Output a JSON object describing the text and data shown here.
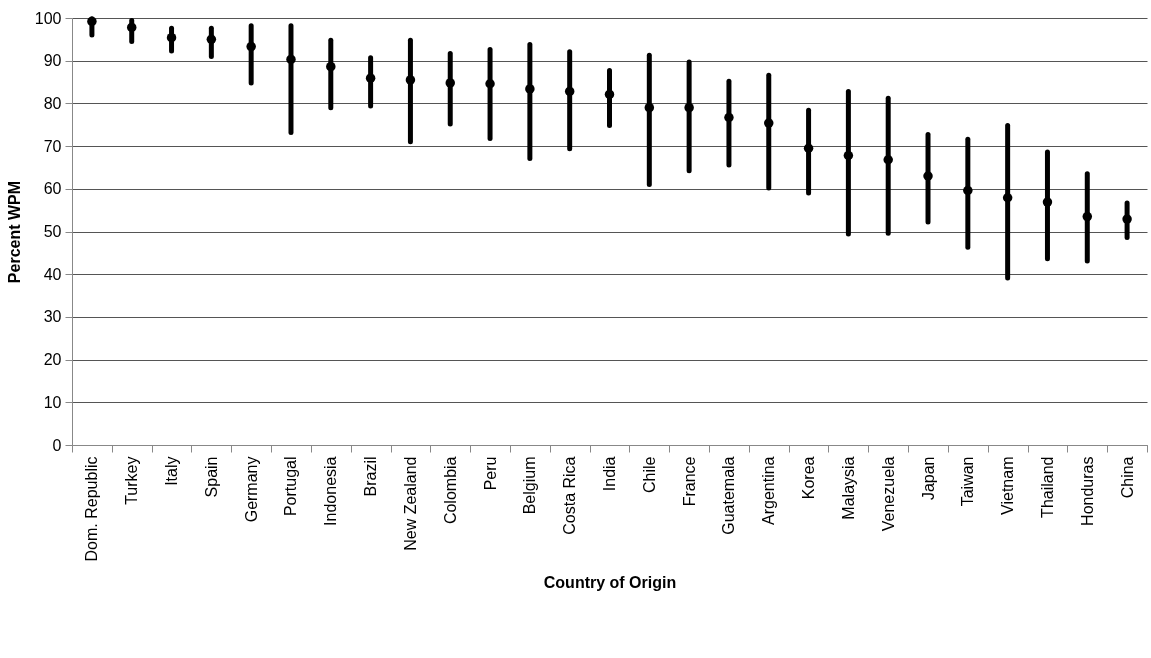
{
  "chart_data": {
    "type": "scatter",
    "xlabel": "Country of Origin",
    "ylabel": "Percent WPM",
    "categories": [
      "Dom. Republic",
      "Turkey",
      "Italy",
      "Spain",
      "Germany",
      "Portugal",
      "Indonesia",
      "Brazil",
      "New Zealand",
      "Colombia",
      "Peru",
      "Belgium",
      "Costa Rica",
      "India",
      "Chile",
      "France",
      "Guatemala",
      "Argentina",
      "Korea",
      "Malaysia",
      "Venezuela",
      "Japan",
      "Taiwan",
      "Vietnam",
      "Thailand",
      "Honduras",
      "China"
    ],
    "series": [
      {
        "color": "#000000",
        "values": [
          99.2,
          97.8,
          95.4,
          95,
          93.3,
          90.3,
          88.6,
          85.9,
          85.5,
          84.8,
          84.6,
          83.4,
          82.8,
          82.1,
          79,
          79,
          76.7,
          75.4,
          69.5,
          67.8,
          66.8,
          63,
          59.6,
          57.9,
          56.9,
          53.5,
          52.9
        ],
        "errors": [
          [
            96,
            99.8
          ],
          [
            94.5,
            99.4
          ],
          [
            92.3,
            97.6
          ],
          [
            91,
            97.6
          ],
          [
            84.8,
            98.2
          ],
          [
            73.2,
            98.2
          ],
          [
            79,
            94.8
          ],
          [
            79.4,
            90.7
          ],
          [
            71,
            94.8
          ],
          [
            75.2,
            91.7
          ],
          [
            71.8,
            92.6
          ],
          [
            67.1,
            93.8
          ],
          [
            69.4,
            92.1
          ],
          [
            74.8,
            87.7
          ],
          [
            61,
            91.3
          ],
          [
            64.2,
            89.7
          ],
          [
            65.6,
            85.2
          ],
          [
            60.2,
            86.6
          ],
          [
            59,
            78.4
          ],
          [
            49.4,
            82.8
          ],
          [
            49.6,
            81.2
          ],
          [
            52.2,
            72.7
          ],
          [
            46.3,
            71.6
          ],
          [
            39.1,
            74.8
          ],
          [
            43.6,
            68.6
          ],
          [
            43.1,
            63.5
          ],
          [
            48.6,
            56.7
          ]
        ]
      }
    ],
    "ylim": [
      0,
      100
    ],
    "yticks": [
      0,
      10,
      20,
      30,
      40,
      50,
      60,
      70,
      80,
      90,
      100
    ],
    "grid": "y",
    "marker": "circle"
  }
}
